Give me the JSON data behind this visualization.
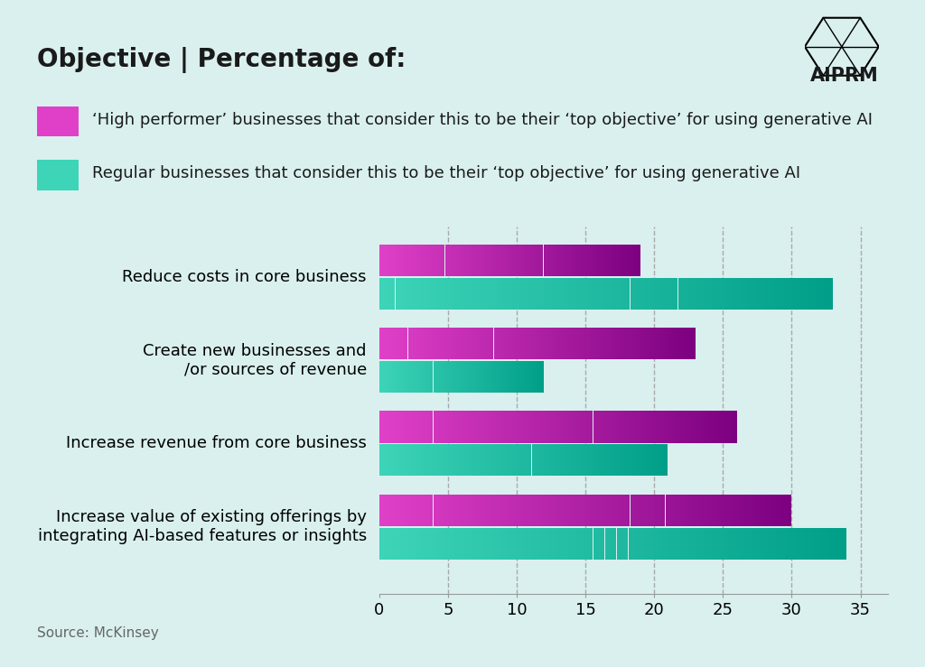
{
  "title": "Objective | Percentage of:",
  "background_color": "#d9f0ee",
  "categories": [
    "Reduce costs in core business",
    "Create new businesses and\n/or sources of revenue",
    "Increase revenue from core business",
    "Increase value of existing offerings by\nintegrating AI-based features or insights"
  ],
  "high_performer_values": [
    19,
    23,
    26,
    30
  ],
  "regular_values": [
    33,
    12,
    21,
    34
  ],
  "high_performer_color_left": "#e040c8",
  "high_performer_color_right": "#7b0080",
  "regular_color_left": "#3dd4b8",
  "regular_color_right": "#009e88",
  "legend_high_performer": "‘High performer’ businesses that consider this to be their ‘top objective’ for using generative AI",
  "legend_regular": "Regular businesses that consider this to be their ‘top objective’ for using generative AI",
  "xlabel_ticks": [
    0,
    5,
    10,
    15,
    20,
    25,
    30,
    35
  ],
  "xlim": [
    0,
    37
  ],
  "source": "Source: McKinsey",
  "title_fontsize": 20,
  "label_fontsize": 13,
  "legend_fontsize": 13,
  "tick_fontsize": 13,
  "bar_height": 0.38,
  "gridline_color": "#aaaaaa",
  "gridline_style": "--"
}
